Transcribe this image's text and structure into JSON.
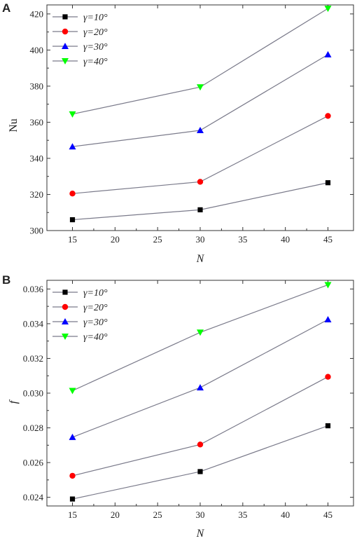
{
  "chart_data": [
    {
      "panel": "A",
      "type": "line",
      "xlabel": "N",
      "ylabel": "Nu",
      "x": [
        15,
        30,
        45
      ],
      "xlim": [
        12,
        48
      ],
      "ylim": [
        300,
        425
      ],
      "xticks": [
        "15",
        "20",
        "25",
        "30",
        "35",
        "40",
        "45"
      ],
      "yticks": [
        "300",
        "320",
        "340",
        "360",
        "380",
        "400",
        "420"
      ],
      "legend_position": "top-left",
      "grid": false,
      "series": [
        {
          "name": "γ=10°",
          "values": [
            306,
            311.5,
            326.5
          ],
          "color": "#000000",
          "marker": "square"
        },
        {
          "name": "γ=20°",
          "values": [
            320.5,
            327,
            363.5
          ],
          "color": "#ff0000",
          "marker": "circle"
        },
        {
          "name": "γ=30°",
          "values": [
            346.5,
            355.5,
            397.5
          ],
          "color": "#0000ff",
          "marker": "triangle-up"
        },
        {
          "name": "γ=40°",
          "values": [
            364.5,
            379.5,
            423
          ],
          "color": "#00ff00",
          "marker": "triangle-down"
        }
      ]
    },
    {
      "panel": "B",
      "type": "line",
      "xlabel": "N",
      "ylabel": "f",
      "x": [
        15,
        30,
        45
      ],
      "xlim": [
        12,
        48
      ],
      "ylim": [
        0.0235,
        0.0365
      ],
      "xticks": [
        "15",
        "20",
        "25",
        "30",
        "35",
        "40",
        "45"
      ],
      "yticks": [
        "0.024",
        "0.026",
        "0.028",
        "0.030",
        "0.032",
        "0.034",
        "0.036"
      ],
      "legend_position": "top-left",
      "grid": false,
      "series": [
        {
          "name": "γ=10°",
          "values": [
            0.0239,
            0.02548,
            0.02812
          ],
          "color": "#000000",
          "marker": "square"
        },
        {
          "name": "γ=20°",
          "values": [
            0.02524,
            0.02704,
            0.03094
          ],
          "color": "#ff0000",
          "marker": "circle"
        },
        {
          "name": "γ=30°",
          "values": [
            0.02746,
            0.03032,
            0.03424
          ],
          "color": "#0000ff",
          "marker": "triangle-up"
        },
        {
          "name": "γ=40°",
          "values": [
            0.03014,
            0.0335,
            0.03624
          ],
          "color": "#00ff00",
          "marker": "triangle-down"
        }
      ]
    }
  ],
  "line_color": "#7a7a8a"
}
